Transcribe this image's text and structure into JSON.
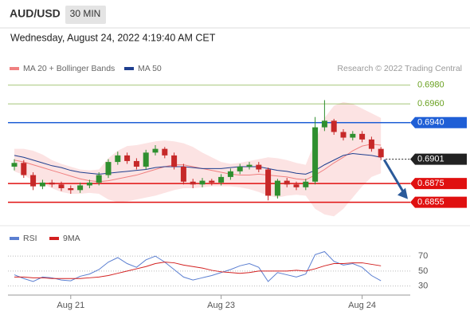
{
  "header": {
    "symbol": "AUD/USD",
    "timeframe": "30 MIN",
    "timestamp": "Wednesday, August 24, 2022 4:19:40 AM CET"
  },
  "chart_data": [
    {
      "type": "candlestick",
      "source": "Research © 2022 Trading Central",
      "ylim": [
        0.683,
        0.699
      ],
      "up_color": "#2f8f2f",
      "down_color": "#c62828",
      "open": [
        0.6893,
        0.6897,
        0.6884,
        0.6872,
        0.6876,
        0.6874,
        0.687,
        0.6868,
        0.6873,
        0.6876,
        0.6884,
        0.6898,
        0.6905,
        0.6899,
        0.6893,
        0.6908,
        0.6912,
        0.6905,
        0.6893,
        0.6877,
        0.6874,
        0.6878,
        0.6876,
        0.6882,
        0.6888,
        0.6893,
        0.6895,
        0.689,
        0.6862,
        0.6878,
        0.6874,
        0.6871,
        0.6877,
        0.6935,
        0.6942,
        0.693,
        0.6924,
        0.6928,
        0.6922,
        0.6912
      ],
      "high": [
        0.6901,
        0.69,
        0.6887,
        0.6879,
        0.6879,
        0.6877,
        0.6873,
        0.6876,
        0.6879,
        0.6887,
        0.6901,
        0.6909,
        0.6908,
        0.6902,
        0.6911,
        0.6916,
        0.6914,
        0.6908,
        0.6896,
        0.688,
        0.6881,
        0.688,
        0.6885,
        0.6891,
        0.6896,
        0.6898,
        0.6898,
        0.6892,
        0.688,
        0.6881,
        0.6877,
        0.688,
        0.6946,
        0.6964,
        0.6944,
        0.6933,
        0.6931,
        0.6931,
        0.6925,
        0.6914
      ],
      "low": [
        0.6889,
        0.6881,
        0.6868,
        0.6869,
        0.6871,
        0.6867,
        0.6864,
        0.6865,
        0.687,
        0.6873,
        0.6881,
        0.6895,
        0.6896,
        0.689,
        0.689,
        0.6905,
        0.6902,
        0.689,
        0.6874,
        0.687,
        0.6871,
        0.6873,
        0.6873,
        0.6879,
        0.6885,
        0.689,
        0.6887,
        0.6857,
        0.6859,
        0.6871,
        0.6868,
        0.6868,
        0.6874,
        0.6931,
        0.6927,
        0.6921,
        0.6921,
        0.6919,
        0.6909,
        0.69
      ],
      "close": [
        0.6897,
        0.6884,
        0.6872,
        0.6876,
        0.6874,
        0.687,
        0.6868,
        0.6873,
        0.6876,
        0.6884,
        0.6898,
        0.6905,
        0.6899,
        0.6893,
        0.6908,
        0.6912,
        0.6905,
        0.6893,
        0.6877,
        0.6874,
        0.6878,
        0.6876,
        0.6882,
        0.6888,
        0.6893,
        0.6895,
        0.689,
        0.6862,
        0.6878,
        0.6874,
        0.6871,
        0.6877,
        0.6935,
        0.6942,
        0.693,
        0.6924,
        0.6928,
        0.6922,
        0.6912,
        0.6903
      ],
      "series": [
        {
          "name": "MA 20 + Bollinger Bands",
          "color": "#f08080",
          "values": [
            0.69,
            0.6898,
            0.6895,
            0.6892,
            0.6889,
            0.6886,
            0.6883,
            0.688,
            0.6878,
            0.6877,
            0.6878,
            0.688,
            0.6882,
            0.6884,
            0.6887,
            0.689,
            0.6893,
            0.6895,
            0.6895,
            0.6893,
            0.6891,
            0.6889,
            0.6887,
            0.6885,
            0.6884,
            0.6884,
            0.6885,
            0.6884,
            0.6883,
            0.6882,
            0.688,
            0.6879,
            0.6884,
            0.689,
            0.6897,
            0.6903,
            0.691,
            0.6915,
            0.6917,
            0.6916
          ],
          "upper": [
            0.6912,
            0.6912,
            0.691,
            0.6906,
            0.69,
            0.6896,
            0.6893,
            0.689,
            0.6889,
            0.689,
            0.6902,
            0.691,
            0.6915,
            0.6916,
            0.6918,
            0.692,
            0.6921,
            0.692,
            0.6918,
            0.6914,
            0.6908,
            0.6903,
            0.6898,
            0.6896,
            0.6897,
            0.6899,
            0.6901,
            0.6903,
            0.6902,
            0.69,
            0.6897,
            0.6895,
            0.692,
            0.6945,
            0.6958,
            0.6962,
            0.696,
            0.6955,
            0.695,
            0.6945
          ],
          "lower": [
            0.6888,
            0.6884,
            0.6878,
            0.6875,
            0.687,
            0.6866,
            0.6864,
            0.6864,
            0.6865,
            0.6864,
            0.6858,
            0.6855,
            0.6856,
            0.6858,
            0.686,
            0.6862,
            0.6865,
            0.6868,
            0.687,
            0.687,
            0.6871,
            0.6872,
            0.6872,
            0.6872,
            0.6871,
            0.6869,
            0.6866,
            0.6862,
            0.686,
            0.6862,
            0.6863,
            0.6862,
            0.6848,
            0.6842,
            0.684,
            0.6848,
            0.686,
            0.6872,
            0.6882,
            0.6886
          ]
        },
        {
          "name": "MA 50",
          "color": "#1f3f8f",
          "values": [
            0.6905,
            0.6903,
            0.69,
            0.6897,
            0.6894,
            0.6892,
            0.6889,
            0.6887,
            0.6886,
            0.6885,
            0.6886,
            0.6887,
            0.6888,
            0.6889,
            0.689,
            0.6892,
            0.6893,
            0.6893,
            0.6893,
            0.6892,
            0.6891,
            0.6891,
            0.6891,
            0.6892,
            0.6893,
            0.6893,
            0.6893,
            0.6891,
            0.6889,
            0.6888,
            0.6886,
            0.6885,
            0.6889,
            0.6895,
            0.69,
            0.6905,
            0.6907,
            0.6906,
            0.6905,
            0.6903
          ]
        }
      ],
      "levels": [
        {
          "value": 0.698,
          "label": "0.6980",
          "color": "#6aa121",
          "boxed": false
        },
        {
          "value": 0.696,
          "label": "0.6960",
          "color": "#6aa121",
          "boxed": false
        },
        {
          "value": 0.694,
          "label": "0.6940",
          "color": "#1f5fd6",
          "boxed": true
        },
        {
          "value": 0.6901,
          "label": "0.6901",
          "color": "#222222",
          "boxed": true,
          "dotted": true
        },
        {
          "value": 0.6875,
          "label": "0.6875",
          "color": "#e01010",
          "boxed": true
        },
        {
          "value": 0.6855,
          "label": "0.6855",
          "color": "#e01010",
          "boxed": true
        }
      ]
    },
    {
      "type": "line",
      "ylim": [
        20,
        84
      ],
      "yticks": [
        30,
        50,
        70
      ],
      "categories": [
        null,
        null,
        null,
        null,
        null,
        null,
        "Aug 21",
        null,
        null,
        null,
        null,
        null,
        null,
        null,
        null,
        null,
        null,
        null,
        null,
        null,
        null,
        null,
        "Aug 23",
        null,
        null,
        null,
        null,
        null,
        null,
        null,
        null,
        null,
        null,
        null,
        null,
        null,
        null,
        "Aug 24",
        null,
        null
      ],
      "series": [
        {
          "name": "RSI",
          "color": "#5b7fd1",
          "values": [
            45,
            40,
            36,
            42,
            41,
            38,
            37,
            43,
            46,
            52,
            62,
            68,
            60,
            55,
            65,
            70,
            62,
            52,
            42,
            38,
            41,
            44,
            48,
            52,
            57,
            60,
            55,
            36,
            48,
            45,
            42,
            46,
            72,
            76,
            63,
            58,
            60,
            55,
            44,
            37
          ]
        },
        {
          "name": "9MA",
          "color": "#d32020",
          "values": [
            42,
            42,
            41,
            41,
            40,
            40,
            40,
            40,
            41,
            42,
            44,
            47,
            50,
            53,
            56,
            60,
            62,
            61,
            58,
            56,
            54,
            51,
            49,
            48,
            47,
            48,
            50,
            50,
            50,
            50,
            51,
            50,
            53,
            57,
            60,
            60,
            61,
            61,
            59,
            57
          ]
        }
      ]
    }
  ]
}
